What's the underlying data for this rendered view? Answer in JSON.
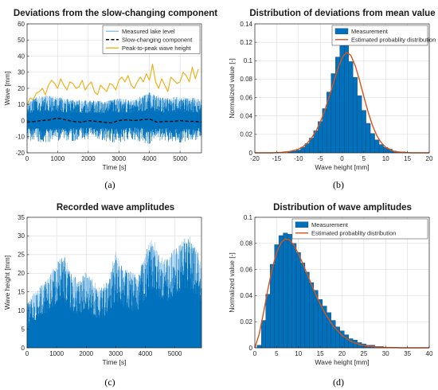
{
  "colors": {
    "measured": "#0072BD",
    "measured_light": "#76b7e5",
    "orange": "#D95319",
    "yellow": "#EDB120",
    "grid": "#dcdcdc",
    "axis": "#262626"
  },
  "chart_data": [
    {
      "type": "line",
      "sub": "(a)",
      "title": "Deviations from the slow-changing component",
      "xlabel": "Time [s]",
      "ylabel": "Wave [mm]",
      "xlim": [
        0,
        5700
      ],
      "ylim": [
        -20,
        60
      ],
      "xticks": [
        0,
        1000,
        2000,
        3000,
        4000,
        5000
      ],
      "yticks": [
        -20,
        -10,
        0,
        10,
        20,
        30,
        40,
        50,
        60
      ],
      "grid": true,
      "legend": "top-right",
      "series": [
        {
          "name": "Measured lake level",
          "style": "dense-band",
          "x": [
            0,
            500,
            1000,
            1500,
            2000,
            2500,
            3000,
            3500,
            4000,
            4500,
            5000,
            5500,
            5700
          ],
          "upper": [
            12,
            16,
            15,
            13,
            13,
            12,
            14,
            13,
            18,
            14,
            15,
            14,
            13
          ],
          "lower": [
            -12,
            -14,
            -13,
            -13,
            -12,
            -13,
            -14,
            -12,
            -15,
            -13,
            -14,
            -13,
            -12
          ]
        },
        {
          "name": "Slow-changing component",
          "style": "dashed",
          "x": [
            0,
            250,
            500,
            750,
            1000,
            1250,
            1500,
            1750,
            2000,
            2250,
            2500,
            2750,
            3000,
            3250,
            3500,
            3750,
            4000,
            4250,
            4500,
            4750,
            5000,
            5250,
            5500,
            5700
          ],
          "values": [
            -1,
            -0.5,
            0,
            0.5,
            1.5,
            0.5,
            -0.5,
            -1,
            0,
            -0.5,
            -1,
            -1.5,
            0,
            0.5,
            0,
            0.5,
            1,
            -1,
            -0.5,
            -0.5,
            0,
            -0.5,
            -0.5,
            -1
          ]
        },
        {
          "name": "Peak-to-peak wave height",
          "style": "line",
          "x": [
            0,
            100,
            200,
            300,
            400,
            500,
            600,
            700,
            800,
            900,
            1000,
            1100,
            1200,
            1300,
            1400,
            1500,
            1600,
            1700,
            1800,
            1900,
            2000,
            2100,
            2200,
            2300,
            2400,
            2500,
            2600,
            2700,
            2800,
            2900,
            3000,
            3100,
            3200,
            3300,
            3400,
            3500,
            3600,
            3700,
            3800,
            3900,
            4000,
            4100,
            4200,
            4300,
            4400,
            4500,
            4600,
            4700,
            4800,
            4900,
            5000,
            5100,
            5200,
            5300,
            5400,
            5500,
            5600
          ],
          "values": [
            10,
            14,
            13,
            17,
            18,
            20,
            16,
            22,
            25,
            23,
            20,
            26,
            22,
            19,
            24,
            23,
            20,
            21,
            25,
            19,
            22,
            24,
            18,
            16,
            22,
            20,
            18,
            23,
            22,
            19,
            25,
            27,
            24,
            28,
            22,
            20,
            24,
            27,
            24,
            29,
            25,
            35,
            24,
            20,
            26,
            22,
            18,
            27,
            25,
            23,
            24,
            30,
            28,
            24,
            33,
            26,
            32
          ]
        }
      ]
    },
    {
      "type": "bar",
      "sub": "(b)",
      "title": "Distribution of deviations from mean value",
      "xlabel": "Wave height [mm]",
      "ylabel": "Normalized value [-]",
      "xlim": [
        -20,
        20
      ],
      "ylim": [
        0,
        0.14
      ],
      "xticks": [
        -20,
        -15,
        -10,
        -5,
        0,
        5,
        10,
        15,
        20
      ],
      "yticks": [
        0,
        0.02,
        0.04,
        0.06,
        0.08,
        0.1,
        0.12,
        0.14
      ],
      "grid": true,
      "legend": "top-right",
      "bin_width": 1,
      "series": [
        {
          "name": "Measurement",
          "style": "bars",
          "x": [
            -12,
            -11,
            -10,
            -9,
            -8,
            -7,
            -6,
            -5,
            -4,
            -3,
            -2,
            -1,
            0,
            1,
            2,
            3,
            4,
            5,
            6,
            7,
            8,
            9,
            10,
            11,
            12,
            13,
            14
          ],
          "values": [
            0.001,
            0.002,
            0.003,
            0.006,
            0.01,
            0.016,
            0.024,
            0.034,
            0.048,
            0.066,
            0.086,
            0.104,
            0.134,
            0.118,
            0.099,
            0.082,
            0.062,
            0.046,
            0.032,
            0.021,
            0.014,
            0.009,
            0.006,
            0.004,
            0.002,
            0.001,
            0.001
          ]
        },
        {
          "name": "Estimated probablity distribution",
          "style": "line",
          "x": [
            -20,
            -16,
            -14,
            -12,
            -10,
            -9,
            -8,
            -7,
            -6,
            -5,
            -4,
            -3,
            -2,
            -1,
            0,
            1,
            2,
            3,
            4,
            5,
            6,
            7,
            8,
            9,
            10,
            12,
            14,
            16,
            20
          ],
          "values": [
            0,
            0,
            0.0005,
            0.0015,
            0.004,
            0.0065,
            0.0105,
            0.016,
            0.0235,
            0.033,
            0.0455,
            0.06,
            0.0755,
            0.0905,
            0.103,
            0.109,
            0.106,
            0.095,
            0.079,
            0.061,
            0.044,
            0.0295,
            0.0185,
            0.011,
            0.006,
            0.0015,
            0.0005,
            0,
            0
          ]
        }
      ]
    },
    {
      "type": "area",
      "sub": "(c)",
      "title": "Recorded wave amplitudes",
      "xlabel": "Time [s]",
      "ylabel": "Wave height [mm]",
      "xlim": [
        0,
        5900
      ],
      "ylim": [
        0,
        35
      ],
      "xticks": [
        0,
        1000,
        2000,
        3000,
        4000,
        5000
      ],
      "yticks": [
        0,
        5,
        10,
        15,
        20,
        25,
        30,
        35
      ],
      "grid": true,
      "series": [
        {
          "name": "",
          "style": "dense-band",
          "x": [
            0,
            250,
            500,
            750,
            1000,
            1250,
            1500,
            1750,
            2000,
            2250,
            2500,
            2750,
            3000,
            3250,
            3500,
            3750,
            4000,
            4250,
            4500,
            4750,
            5000,
            5250,
            5500,
            5750,
            5900
          ],
          "upper": [
            12,
            15,
            17,
            19,
            23,
            25,
            20,
            18,
            21,
            18,
            16,
            19,
            26,
            21,
            21,
            19,
            26,
            30,
            25,
            24,
            27,
            29,
            30,
            27,
            22
          ],
          "base": [
            2,
            3,
            4,
            5,
            6,
            5,
            4,
            4,
            4,
            3,
            3,
            4,
            5,
            5,
            4,
            5,
            6,
            7,
            6,
            6,
            7,
            8,
            8,
            7,
            6
          ],
          "lower": [
            0,
            0,
            0,
            0,
            0,
            0,
            0,
            0,
            0,
            0,
            0,
            0,
            0,
            0,
            0,
            0,
            0,
            0,
            0,
            0,
            0,
            0,
            0,
            0,
            0
          ]
        }
      ]
    },
    {
      "type": "bar",
      "sub": "(d)",
      "title": "Distribution of wave amplitudes",
      "xlabel": "Wave height [mm]",
      "ylabel": "Normalized value [-]",
      "xlim": [
        0,
        40
      ],
      "ylim": [
        0,
        0.1
      ],
      "xticks": [
        0,
        5,
        10,
        15,
        20,
        25,
        30,
        35,
        40
      ],
      "yticks": [
        0,
        0.02,
        0.04,
        0.06,
        0.08,
        0.1
      ],
      "grid": true,
      "legend": "top-right",
      "bin_width": 1,
      "series": [
        {
          "name": "Measurement",
          "style": "bars",
          "x": [
            1,
            2,
            3,
            4,
            5,
            6,
            7,
            8,
            9,
            10,
            11,
            12,
            13,
            14,
            15,
            16,
            17,
            18,
            19,
            20,
            21,
            22,
            23,
            24,
            25,
            26,
            27,
            28,
            29,
            30
          ],
          "values": [
            0.002,
            0.021,
            0.041,
            0.064,
            0.079,
            0.086,
            0.088,
            0.087,
            0.08,
            0.073,
            0.065,
            0.058,
            0.05,
            0.044,
            0.037,
            0.032,
            0.027,
            0.021,
            0.016,
            0.013,
            0.01,
            0.007,
            0.006,
            0.004,
            0.003,
            0.002,
            0.002,
            0.001,
            0.001,
            0.0005
          ]
        },
        {
          "name": "Estimated probablity distribution",
          "style": "line",
          "x": [
            0,
            1,
            2,
            3,
            4,
            5,
            6,
            7,
            8,
            9,
            10,
            11,
            12,
            13,
            14,
            15,
            16,
            18,
            20,
            22,
            24,
            26,
            28,
            30,
            34,
            40
          ],
          "values": [
            0,
            0.0105,
            0.027,
            0.045,
            0.061,
            0.073,
            0.0805,
            0.0835,
            0.0825,
            0.0785,
            0.072,
            0.0645,
            0.0565,
            0.0485,
            0.0405,
            0.0335,
            0.027,
            0.0165,
            0.0095,
            0.005,
            0.0025,
            0.0012,
            0.0006,
            0.0003,
            0,
            0
          ]
        }
      ]
    }
  ]
}
